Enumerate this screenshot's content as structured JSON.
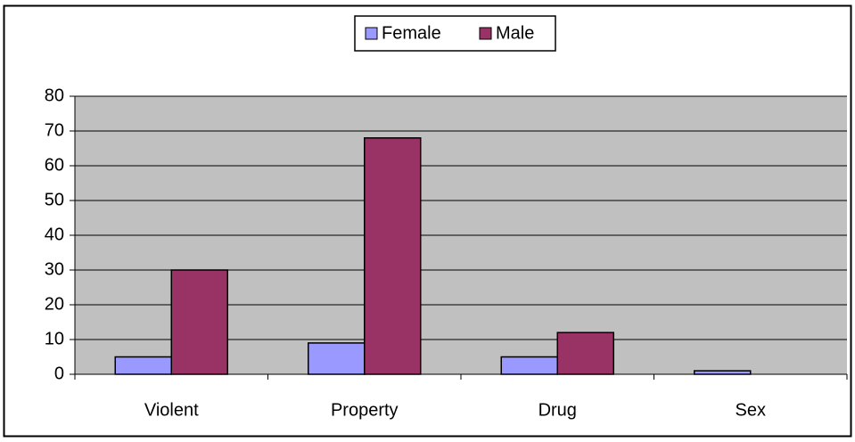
{
  "chart_data": {
    "type": "bar",
    "categories": [
      "Violent",
      "Property",
      "Drug",
      "Sex"
    ],
    "series": [
      {
        "name": "Female",
        "color": "#9999ff",
        "values": [
          5,
          9,
          5,
          1
        ]
      },
      {
        "name": "Male",
        "color": "#993366",
        "values": [
          30,
          68,
          12,
          0
        ]
      }
    ],
    "ylim": [
      0,
      80
    ],
    "yticks": [
      0,
      10,
      20,
      30,
      40,
      50,
      60,
      70,
      80
    ],
    "grid": true,
    "legend": "top",
    "plot_background": "#c0c0c0"
  }
}
